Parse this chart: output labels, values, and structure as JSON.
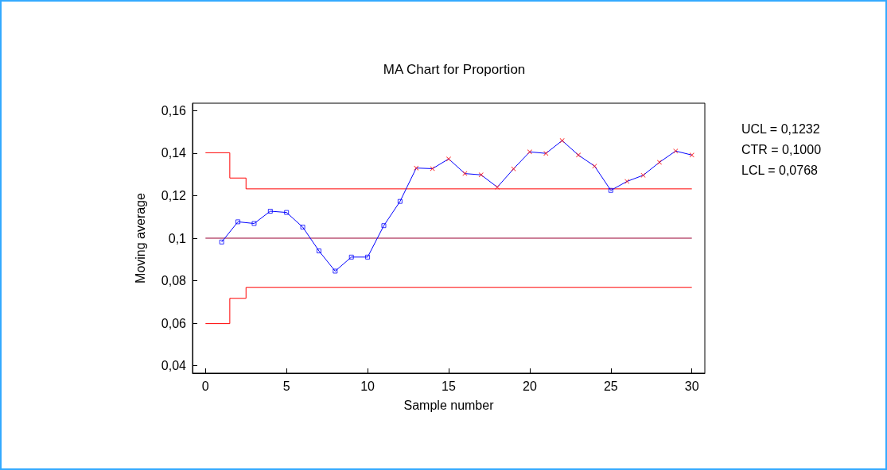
{
  "chart_data": {
    "type": "line",
    "title": "MA Chart for Proportion",
    "xlabel": "Sample number",
    "ylabel": "Moving average",
    "xlim": [
      -0.8,
      30.8
    ],
    "xticks": [
      0,
      5,
      10,
      15,
      20,
      25,
      30
    ],
    "ylim": [
      0.0365,
      0.1635
    ],
    "yticks": [
      {
        "value": 0.04,
        "label": "0,04"
      },
      {
        "value": 0.06,
        "label": "0,06"
      },
      {
        "value": 0.08,
        "label": "0,08"
      },
      {
        "value": 0.1,
        "label": "0,1"
      },
      {
        "value": 0.12,
        "label": "0,12"
      },
      {
        "value": 0.14,
        "label": "0,14"
      },
      {
        "value": 0.16,
        "label": "0,16"
      }
    ],
    "grid": false,
    "annotations": [
      "UCL = 0,1232",
      "CTR = 0,1000",
      "LCL = 0,0768"
    ],
    "series": [
      {
        "type": "step",
        "color": "#ff0000",
        "marker": "none",
        "x": [
          0,
          1.5,
          2.5,
          30
        ],
        "values": [
          0.1402,
          0.1283,
          0.1232,
          0.1232
        ]
      },
      {
        "type": "step",
        "color": "#ff0000",
        "marker": "none",
        "x": [
          0,
          1.5,
          2.5,
          30
        ],
        "values": [
          0.0598,
          0.0717,
          0.0768,
          0.0768
        ]
      },
      {
        "type": "line",
        "color": "#990033",
        "marker": "none",
        "x": [
          0,
          30
        ],
        "values": [
          0.1,
          0.1
        ]
      },
      {
        "type": "line",
        "color": "#0000ff",
        "marker": "none",
        "x": [
          1,
          2,
          3,
          4,
          5,
          6,
          7,
          8,
          9,
          10,
          11,
          12,
          13,
          14,
          15,
          16,
          17,
          18,
          19,
          20,
          21,
          22,
          23,
          24,
          25,
          26,
          27,
          28,
          29,
          30
        ],
        "values": [
          0.0982,
          0.1077,
          0.1069,
          0.1127,
          0.1121,
          0.1052,
          0.094,
          0.0845,
          0.0911,
          0.0911,
          0.1059,
          0.1173,
          0.133,
          0.1327,
          0.1373,
          0.1304,
          0.1298,
          0.124,
          0.1326,
          0.1406,
          0.1399,
          0.1459,
          0.1391,
          0.1339,
          0.1225,
          0.1267,
          0.1296,
          0.1357,
          0.141,
          0.1391
        ]
      },
      {
        "type": "scatter",
        "color": "#0000ff",
        "marker": "square",
        "x": [
          1,
          2,
          3,
          4,
          5,
          6,
          7,
          8,
          9,
          10,
          11,
          12,
          25
        ],
        "values": [
          0.0982,
          0.1077,
          0.1069,
          0.1127,
          0.1121,
          0.1052,
          0.094,
          0.0845,
          0.0911,
          0.0911,
          0.1059,
          0.1173,
          0.1225
        ]
      },
      {
        "type": "scatter",
        "color": "#ff0000",
        "marker": "cross",
        "x": [
          13,
          14,
          15,
          16,
          17,
          18,
          19,
          20,
          21,
          22,
          23,
          24,
          26,
          27,
          28,
          29,
          30
        ],
        "values": [
          0.133,
          0.1327,
          0.1373,
          0.1304,
          0.1298,
          0.124,
          0.1326,
          0.1406,
          0.1399,
          0.1459,
          0.1391,
          0.1339,
          0.1267,
          0.1296,
          0.1357,
          0.141,
          0.1391
        ]
      }
    ]
  }
}
